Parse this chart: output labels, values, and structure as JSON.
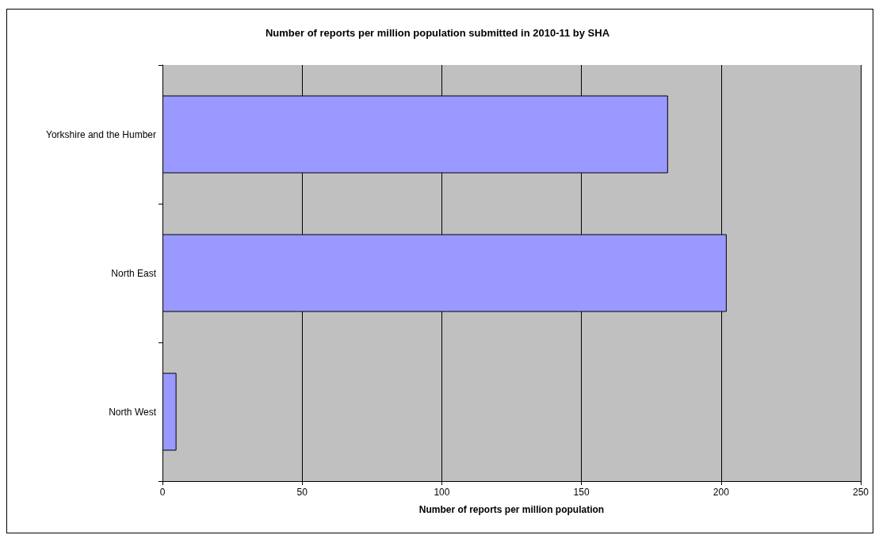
{
  "chart_data": {
    "type": "bar",
    "orientation": "horizontal",
    "title": "Number of reports per million population submitted in 2010-11 by SHA",
    "xlabel": "Number of reports per million population",
    "categories": [
      "Yorkshire and the Humber",
      "North East",
      "North West"
    ],
    "values": [
      181,
      202,
      5
    ],
    "color": "#9999ff",
    "xlim": [
      0,
      250
    ],
    "xticks": [
      0,
      50,
      100,
      150,
      200,
      250
    ],
    "grid": "x"
  }
}
